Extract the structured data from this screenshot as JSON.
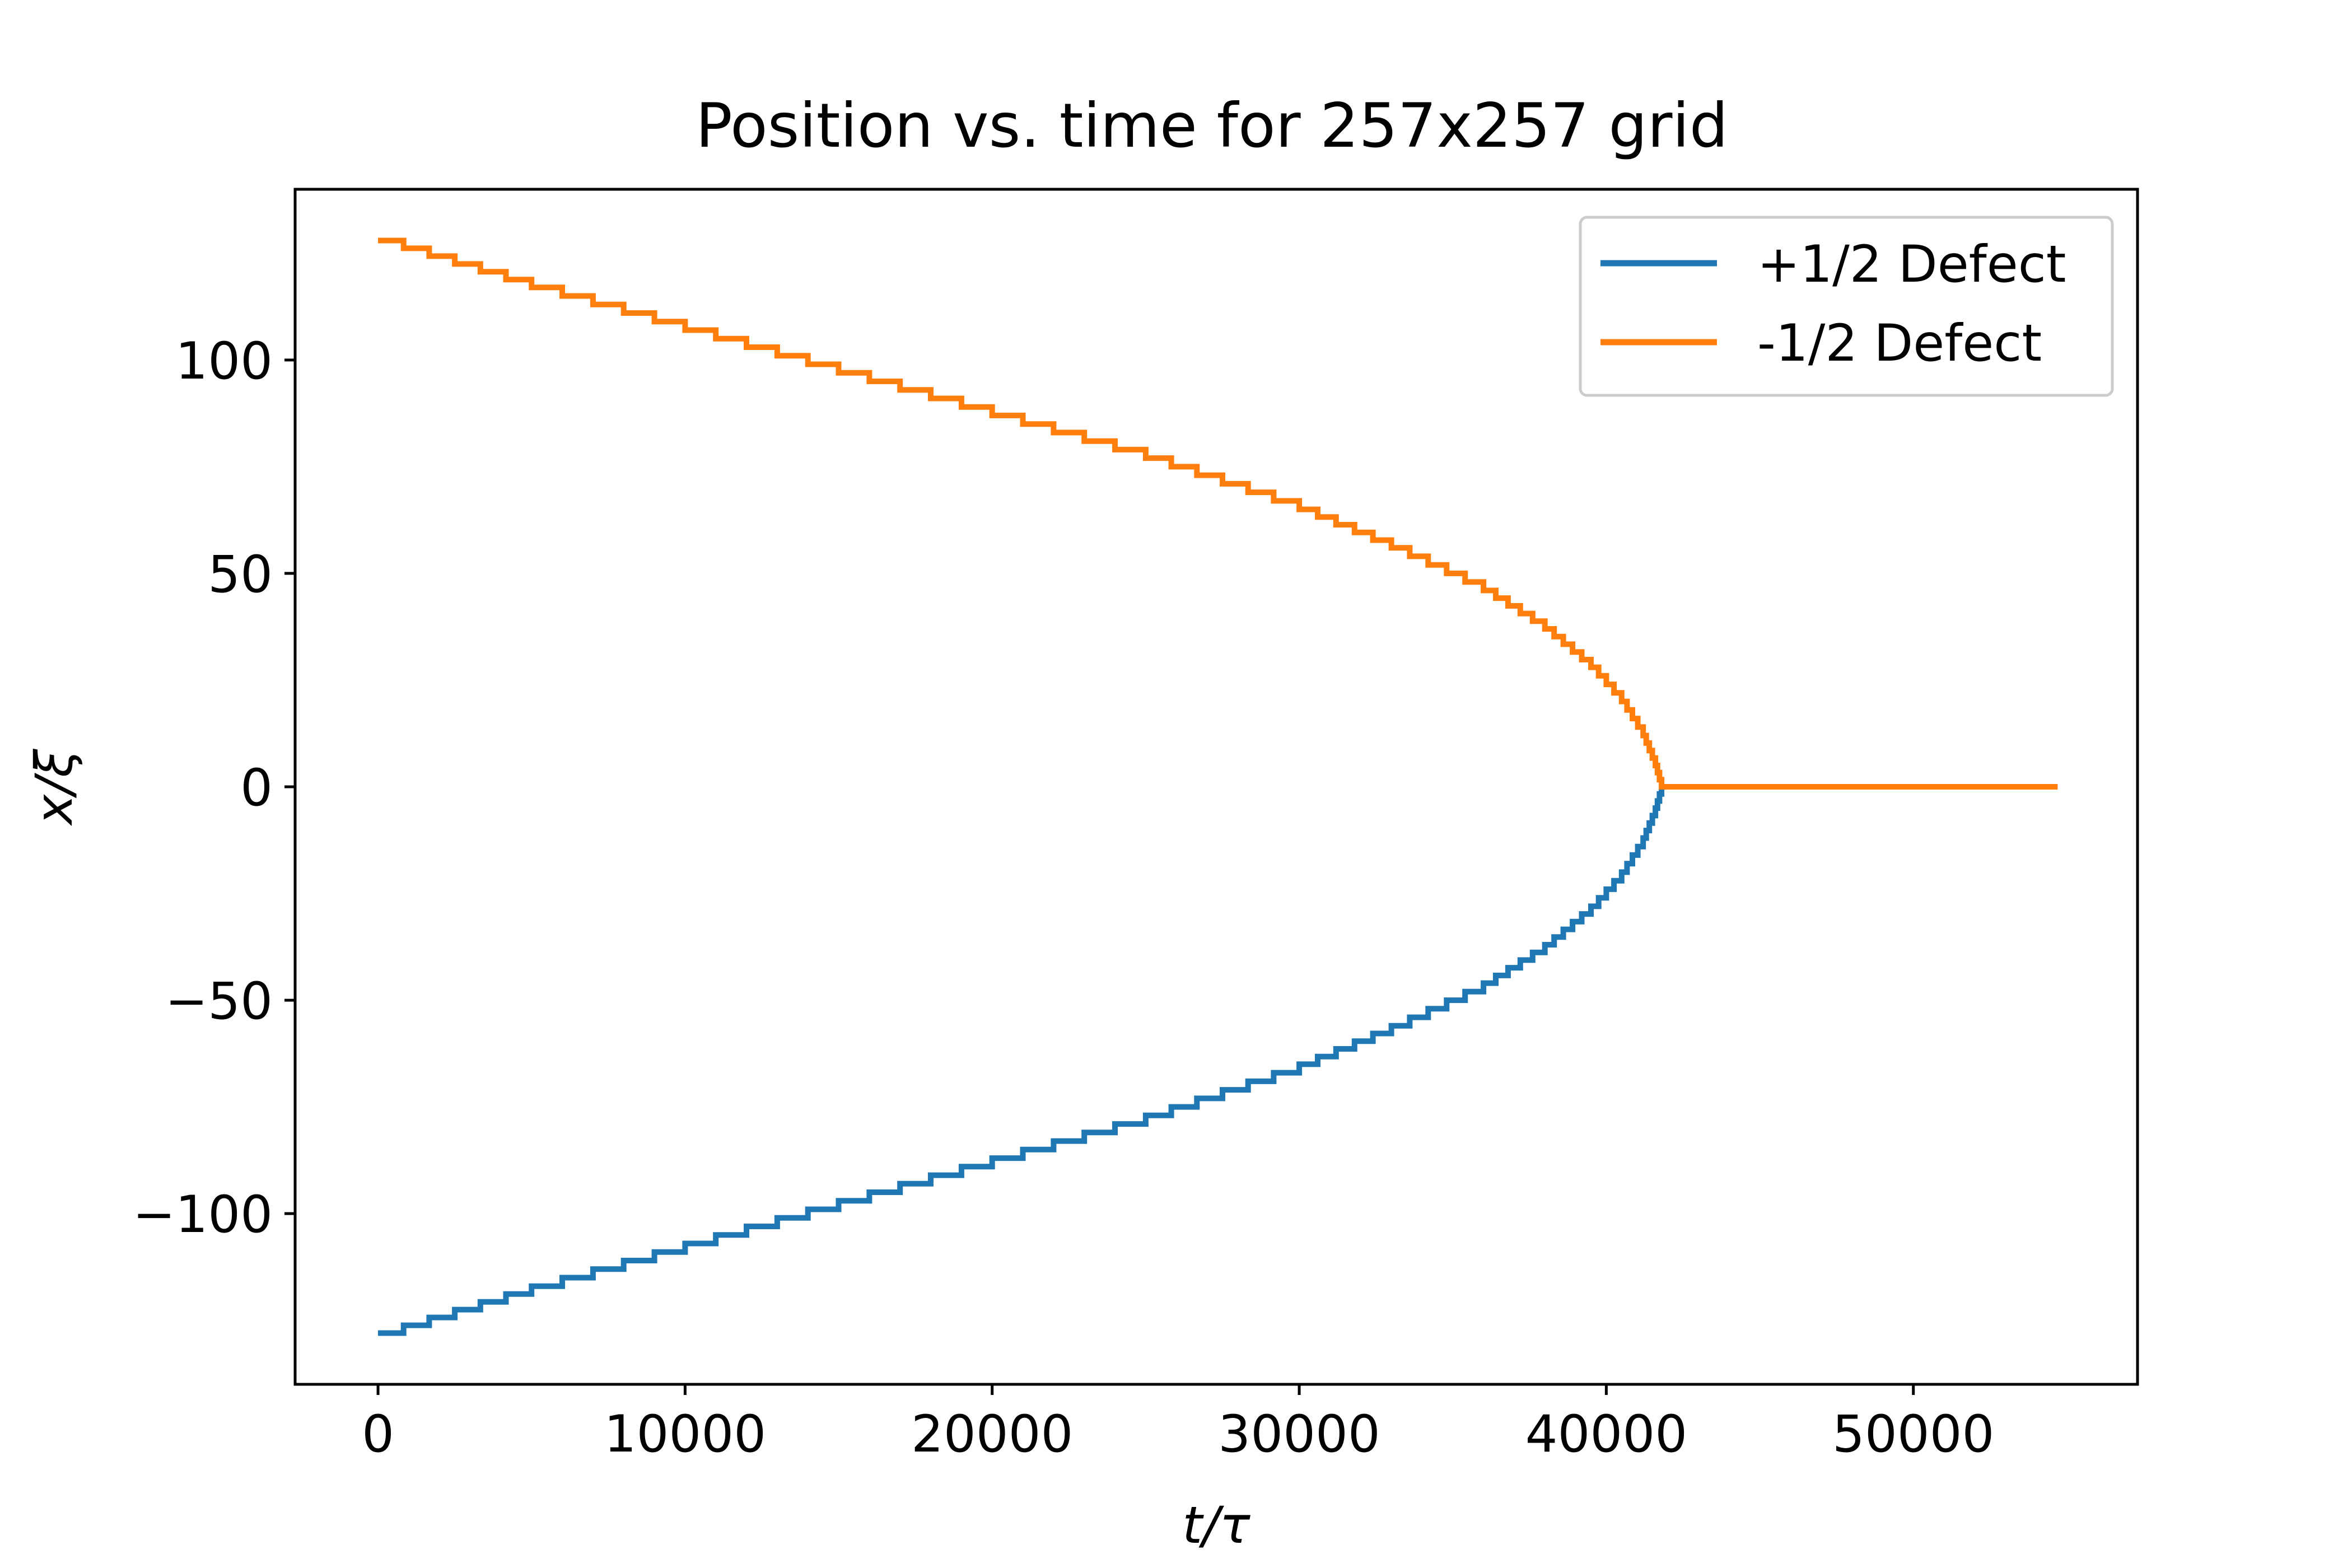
{
  "chart_data": {
    "type": "line",
    "title": "Position vs. time for 257x257 grid",
    "xlabel": "t/τ",
    "ylabel": "x/ξ",
    "xlim": [
      -2700,
      57300
    ],
    "ylim": [
      -140,
      140
    ],
    "xticks": [
      0,
      10000,
      20000,
      30000,
      40000,
      50000
    ],
    "yticks": [
      -100,
      -50,
      0,
      50,
      100
    ],
    "xtick_labels": [
      "0",
      "10000",
      "20000",
      "30000",
      "40000",
      "50000"
    ],
    "ytick_labels": [
      "−100",
      "−50",
      "0",
      "50",
      "100"
    ],
    "grid": false,
    "legend_position": "upper right",
    "series": [
      {
        "name": "+1/2 Defect",
        "color": "#1f77b4",
        "x": [
          0,
          5000,
          10000,
          15000,
          20000,
          25000,
          30000,
          33000,
          36000,
          38000,
          39500,
          40500,
          41200,
          41600,
          41800
        ],
        "y": [
          -128,
          -117,
          -107,
          -97,
          -87,
          -77,
          -65,
          -56,
          -46,
          -37,
          -28,
          -20,
          -12,
          -5,
          0
        ]
      },
      {
        "name": "-1/2 Defect",
        "color": "#ff7f0e",
        "x": [
          0,
          5000,
          10000,
          15000,
          20000,
          25000,
          30000,
          33000,
          36000,
          38000,
          39500,
          40500,
          41200,
          41600,
          41800,
          54700
        ],
        "y": [
          128,
          117,
          107,
          97,
          87,
          77,
          65,
          56,
          46,
          37,
          28,
          20,
          12,
          5,
          0,
          0
        ]
      }
    ]
  }
}
